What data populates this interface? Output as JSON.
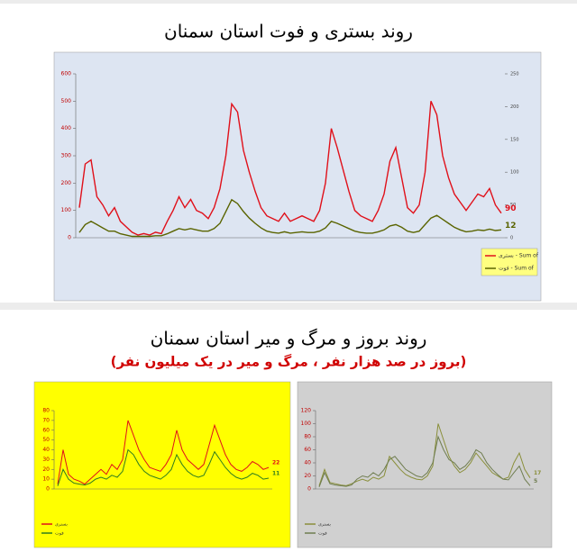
{
  "section2": {
    "title": "روند بروز و مرگ و میر استان سمنان",
    "subtitle": "(بروز در صد هزار نفر ، مرگ و میر در یک میلیون نفر)"
  },
  "chart_data": [
    {
      "type": "line",
      "title": "روند بستری و فوت استان سمنان",
      "background": "#dde5f2",
      "legend": "right",
      "ylim": [
        0,
        600
      ],
      "yticks": [
        0,
        100,
        200,
        300,
        400,
        500,
        600
      ],
      "y2lim": [
        0,
        250
      ],
      "y2ticks": [
        0,
        50,
        100,
        150,
        200,
        250
      ],
      "series": [
        {
          "name": "بستری - Sum of",
          "color": "#e0101a",
          "values": [
            110,
            270,
            285,
            150,
            120,
            80,
            110,
            60,
            40,
            20,
            10,
            15,
            10,
            20,
            15,
            60,
            100,
            150,
            110,
            140,
            100,
            90,
            70,
            110,
            180,
            300,
            490,
            460,
            320,
            240,
            170,
            110,
            80,
            70,
            60,
            90,
            60,
            70,
            80,
            70,
            60,
            100,
            200,
            400,
            330,
            250,
            170,
            100,
            80,
            70,
            60,
            100,
            160,
            280,
            330,
            220,
            110,
            90,
            120,
            240,
            500,
            450,
            300,
            220,
            160,
            130,
            100,
            130,
            160,
            150,
            180,
            120,
            90
          ]
        },
        {
          "name": "فوت - Sum of",
          "color": "#5a6400",
          "axis": "y2",
          "values": [
            8,
            20,
            25,
            20,
            15,
            10,
            10,
            6,
            4,
            2,
            2,
            2,
            2,
            3,
            3,
            6,
            10,
            14,
            12,
            14,
            12,
            10,
            10,
            14,
            22,
            40,
            58,
            52,
            40,
            30,
            22,
            15,
            10,
            8,
            7,
            9,
            7,
            8,
            9,
            8,
            8,
            10,
            15,
            25,
            22,
            18,
            14,
            10,
            8,
            7,
            7,
            9,
            12,
            18,
            20,
            16,
            10,
            8,
            10,
            20,
            30,
            34,
            28,
            22,
            16,
            12,
            9,
            10,
            12,
            11,
            13,
            11,
            12
          ]
        }
      ]
    },
    {
      "type": "line",
      "background": "#ffff00",
      "legend": "lower left",
      "ylim": [
        0,
        80
      ],
      "yticks": [
        0,
        10,
        20,
        30,
        40,
        50,
        60,
        70,
        80
      ],
      "series": [
        {
          "name": "بستری",
          "color": "#e0101a",
          "values": [
            5,
            40,
            15,
            10,
            8,
            5,
            10,
            15,
            20,
            15,
            25,
            20,
            30,
            70,
            55,
            40,
            30,
            22,
            20,
            18,
            25,
            35,
            60,
            40,
            30,
            25,
            20,
            25,
            45,
            65,
            50,
            35,
            25,
            20,
            18,
            22,
            28,
            25,
            20,
            22
          ]
        },
        {
          "name": "فوت",
          "color": "#2f7d1f",
          "values": [
            3,
            20,
            10,
            6,
            5,
            4,
            6,
            10,
            12,
            10,
            14,
            12,
            18,
            40,
            35,
            25,
            18,
            14,
            12,
            10,
            14,
            20,
            35,
            25,
            18,
            14,
            12,
            14,
            25,
            38,
            30,
            22,
            16,
            12,
            10,
            12,
            16,
            14,
            10,
            11
          ]
        }
      ]
    },
    {
      "type": "line",
      "background": "#d0d0d0",
      "legend": "lower left",
      "ylim": [
        0,
        120
      ],
      "yticks": [
        0,
        20,
        40,
        60,
        80,
        100,
        120
      ],
      "series": [
        {
          "name": "بستری",
          "color": "#8a8f3a",
          "values": [
            5,
            30,
            10,
            8,
            6,
            5,
            8,
            12,
            15,
            12,
            18,
            15,
            20,
            50,
            40,
            30,
            22,
            18,
            15,
            14,
            20,
            35,
            100,
            75,
            50,
            35,
            25,
            30,
            40,
            55,
            45,
            35,
            25,
            20,
            15,
            18,
            40,
            55,
            30,
            17
          ]
        },
        {
          "name": "فوت",
          "color": "#6f7d50",
          "values": [
            3,
            25,
            8,
            6,
            5,
            4,
            6,
            15,
            20,
            18,
            25,
            20,
            30,
            45,
            50,
            40,
            30,
            25,
            20,
            18,
            25,
            40,
            80,
            60,
            45,
            40,
            30,
            35,
            45,
            60,
            55,
            40,
            30,
            22,
            15,
            14,
            25,
            35,
            15,
            5
          ]
        }
      ]
    }
  ]
}
